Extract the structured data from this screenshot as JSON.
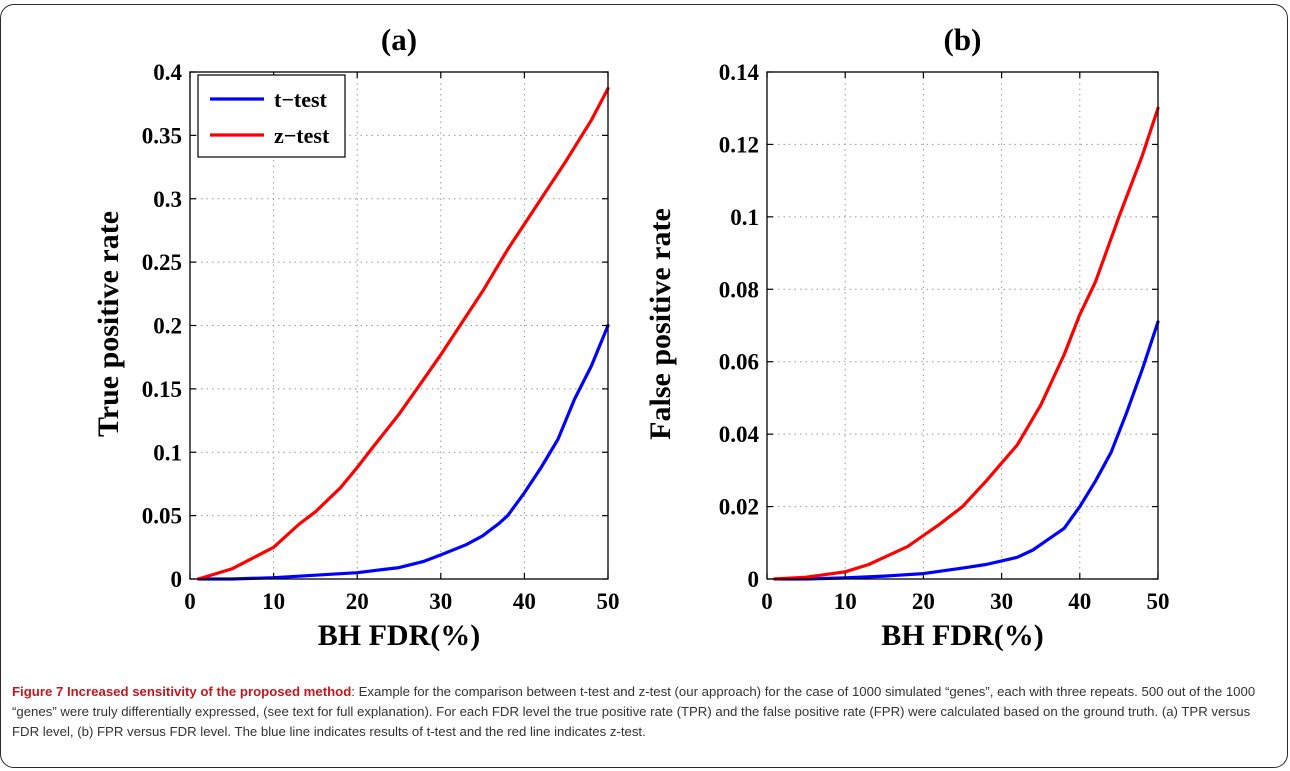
{
  "caption": {
    "title": "Figure 7 Increased sensitivity of the proposed method",
    "body": ": Example for the comparison between t-test and z-test (our approach) for the case of 1000 simulated “genes”, each with three repeats. 500 out of the 1000 “genes” were truly differentially expressed, (see text for full explanation). For each FDR level the true positive rate (TPR) and the false positive rate (FPR) were calculated based on the ground truth. (a) TPR versus FDR level, (b) FPR versus FDR level. The blue line indicates results of t-test and the red line indicates z-test."
  },
  "colors": {
    "t_test": "#0000ff",
    "z_test": "#ff0000",
    "grid": "#999999"
  },
  "chart_data": [
    {
      "panel": "(a)",
      "type": "line",
      "title": "(a)",
      "xlabel": "BH FDR(%)",
      "ylabel": "True positive rate",
      "xlim": [
        0,
        50
      ],
      "ylim": [
        0,
        0.4
      ],
      "xticks": [
        0,
        10,
        20,
        30,
        40,
        50
      ],
      "xtick_labels": [
        "0",
        "10",
        "20",
        "30",
        "40",
        "50"
      ],
      "yticks": [
        0,
        0.05,
        0.1,
        0.15,
        0.2,
        0.25,
        0.3,
        0.35,
        0.4
      ],
      "ytick_labels": [
        "0",
        "0.05",
        "0.1",
        "0.15",
        "0.2",
        "0.25",
        "0.3",
        "0.35",
        "0.4"
      ],
      "grid": true,
      "legend": {
        "position": "top-left",
        "entries": [
          "t−test",
          "z−test"
        ]
      },
      "series": [
        {
          "name": "t−test",
          "color": "#0000ff",
          "x": [
            1,
            5,
            10,
            15,
            20,
            25,
            28,
            30,
            33,
            35,
            37,
            38,
            40,
            42,
            44,
            46,
            48,
            50
          ],
          "y": [
            0,
            0,
            0.001,
            0.003,
            0.005,
            0.009,
            0.014,
            0.019,
            0.027,
            0.034,
            0.044,
            0.05,
            0.068,
            0.088,
            0.11,
            0.142,
            0.168,
            0.2
          ]
        },
        {
          "name": "z−test",
          "color": "#ff0000",
          "x": [
            1,
            5,
            10,
            13,
            15,
            18,
            20,
            22,
            25,
            28,
            30,
            33,
            35,
            38,
            40,
            42,
            45,
            48,
            50
          ],
          "y": [
            0,
            0.008,
            0.025,
            0.043,
            0.053,
            0.072,
            0.088,
            0.105,
            0.13,
            0.158,
            0.177,
            0.207,
            0.227,
            0.26,
            0.28,
            0.3,
            0.33,
            0.362,
            0.387
          ]
        }
      ]
    },
    {
      "panel": "(b)",
      "type": "line",
      "title": "(b)",
      "xlabel": "BH FDR(%)",
      "ylabel": "False positive rate",
      "xlim": [
        0,
        50
      ],
      "ylim": [
        0,
        0.14
      ],
      "xticks": [
        0,
        10,
        20,
        30,
        40,
        50
      ],
      "xtick_labels": [
        "0",
        "10",
        "20",
        "30",
        "40",
        "50"
      ],
      "yticks": [
        0,
        0.02,
        0.04,
        0.06,
        0.08,
        0.1,
        0.12,
        0.14
      ],
      "ytick_labels": [
        "0",
        "0.02",
        "0.04",
        "0.06",
        "0.08",
        "0.1",
        "0.12",
        "0.14"
      ],
      "grid": true,
      "series": [
        {
          "name": "t−test",
          "color": "#0000ff",
          "x": [
            1,
            5,
            10,
            15,
            20,
            25,
            28,
            30,
            32,
            34,
            36,
            38,
            40,
            42,
            44,
            46,
            48,
            50
          ],
          "y": [
            0,
            0,
            0.0003,
            0.0008,
            0.0015,
            0.003,
            0.004,
            0.005,
            0.006,
            0.008,
            0.011,
            0.014,
            0.02,
            0.027,
            0.035,
            0.046,
            0.058,
            0.071
          ]
        },
        {
          "name": "z−test",
          "color": "#ff0000",
          "x": [
            1,
            5,
            10,
            13,
            15,
            18,
            20,
            22,
            25,
            28,
            30,
            32,
            35,
            38,
            40,
            42,
            45,
            48,
            50
          ],
          "y": [
            0,
            0.0005,
            0.002,
            0.004,
            0.006,
            0.009,
            0.012,
            0.015,
            0.02,
            0.027,
            0.032,
            0.037,
            0.048,
            0.062,
            0.073,
            0.082,
            0.1,
            0.117,
            0.13
          ]
        }
      ]
    }
  ]
}
